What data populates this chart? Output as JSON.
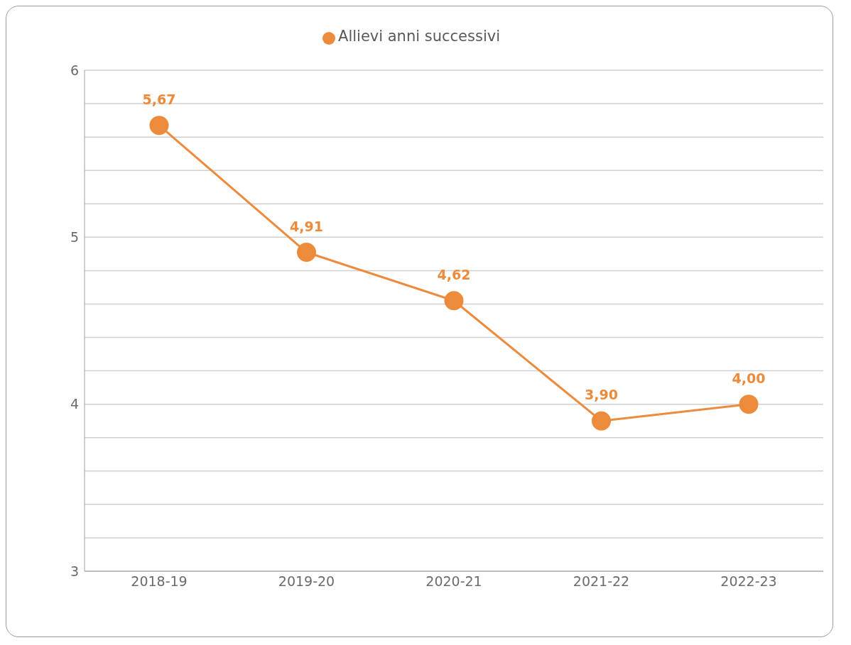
{
  "chart_data": {
    "type": "line",
    "categories": [
      "2018-19",
      "2019-20",
      "2020-21",
      "2021-22",
      "2022-23"
    ],
    "series": [
      {
        "name": "Allievi anni successivi",
        "color": "#ed8b3c",
        "values": [
          5.67,
          4.91,
          4.62,
          3.9,
          4.0
        ],
        "value_labels": [
          "5,67",
          "4,91",
          "4,62",
          "3,90",
          "4,00"
        ]
      }
    ],
    "ylim": [
      3,
      6
    ],
    "yticks": [
      3,
      {
        "value": 3.2,
        "label": null
      },
      {
        "value": 3.4,
        "label": null
      },
      {
        "value": 3.6,
        "label": null
      },
      {
        "value": 3.8,
        "label": null
      },
      4,
      {
        "value": 4.2,
        "label": null
      },
      {
        "value": 4.4,
        "label": null
      },
      {
        "value": 4.6,
        "label": null
      },
      {
        "value": 4.8,
        "label": null
      },
      5,
      {
        "value": 5.2,
        "label": null
      },
      {
        "value": 5.4,
        "label": null
      },
      {
        "value": 5.6,
        "label": null
      },
      {
        "value": 5.8,
        "label": null
      },
      6
    ],
    "grid": "y",
    "legend": "top",
    "marker": "circle",
    "line_style": "solid"
  }
}
